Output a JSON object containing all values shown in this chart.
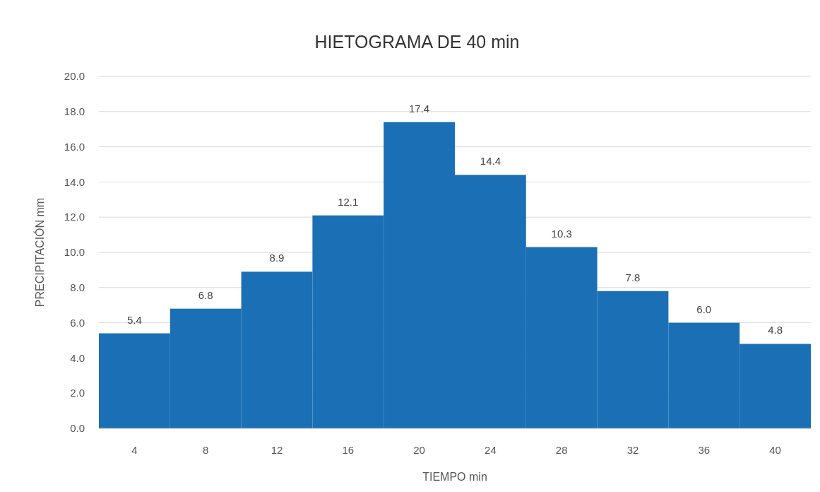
{
  "chart_data": {
    "type": "bar",
    "title": "HIETOGRAMA DE 40 min",
    "xlabel": "TIEMPO min",
    "ylabel": "PRECIPITACIÓN mm",
    "categories": [
      "4",
      "8",
      "12",
      "16",
      "20",
      "24",
      "28",
      "32",
      "36",
      "40"
    ],
    "values": [
      5.4,
      6.8,
      8.9,
      12.1,
      17.4,
      14.4,
      10.3,
      7.8,
      6.0,
      4.8
    ],
    "value_labels": [
      "5.4",
      "6.8",
      "8.9",
      "12.1",
      "17.4",
      "14.4",
      "10.3",
      "7.8",
      "6.0",
      "4.8"
    ],
    "color": "#1b6fb5",
    "ylim": [
      0,
      20
    ],
    "yticks": [
      {
        "value": 0,
        "label": "0.0"
      },
      {
        "value": 2,
        "label": "2.0"
      },
      {
        "value": 4,
        "label": "4.0"
      },
      {
        "value": 6,
        "label": "6.0"
      },
      {
        "value": 8,
        "label": "8.0"
      },
      {
        "value": 10,
        "label": "10.0"
      },
      {
        "value": 12,
        "label": "12.0"
      },
      {
        "value": 14,
        "label": "14.0"
      },
      {
        "value": 16,
        "label": "16.0"
      },
      {
        "value": 18,
        "label": "18.0"
      },
      {
        "value": 20,
        "label": "20.0"
      }
    ],
    "grid": "y"
  }
}
